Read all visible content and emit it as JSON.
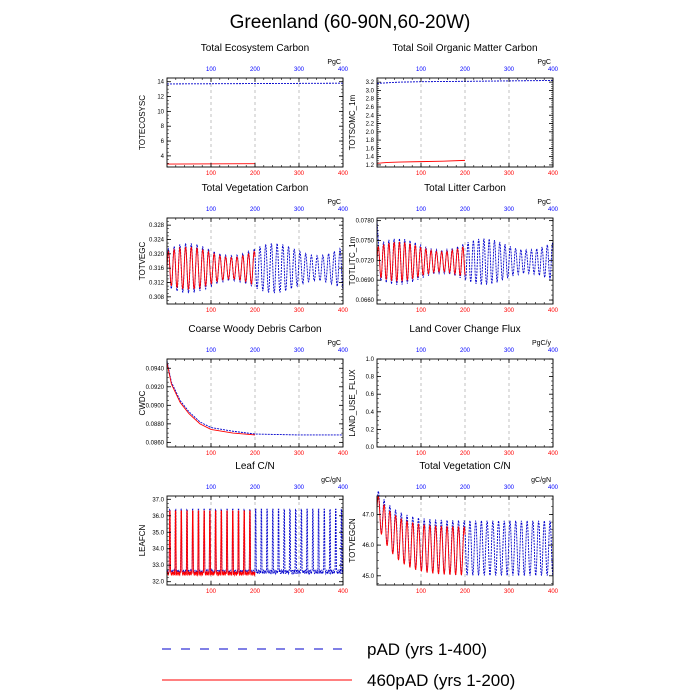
{
  "figure": {
    "title": "Greenland (60-90N,60-20W)",
    "top_axis_color": "#0000ff",
    "bottom_axis_color": "#ff0000"
  },
  "legend": [
    {
      "label": "pAD (yrs 1-400)",
      "color": "#0000cc",
      "style": "dashed"
    },
    {
      "label": "460pAD (yrs 1-200)",
      "color": "#ff0000",
      "style": "solid"
    }
  ],
  "chart_data": [
    {
      "type": "line",
      "title": "Total Ecosystem Carbon",
      "ylabel": "TOTECOSYSC",
      "units": "PgC",
      "xlim": [
        0,
        400
      ],
      "ylim": [
        2.5,
        14.5
      ],
      "yticks": [
        4,
        6,
        8,
        10,
        12,
        14
      ],
      "ytick_labels": [
        "4",
        "6",
        "8",
        "10",
        "12",
        "14"
      ],
      "xticks": [
        100,
        200,
        300,
        400
      ],
      "top_xticks": [
        100,
        200,
        300,
        400
      ],
      "grid": "vertical-dashed",
      "series": [
        {
          "name": "pAD (yrs 1-400)",
          "x": [
            0,
            400
          ],
          "y": [
            13.7,
            13.8
          ]
        },
        {
          "name": "460pAD (yrs 1-200)",
          "x": [
            0,
            200
          ],
          "y": [
            2.9,
            2.95
          ]
        }
      ]
    },
    {
      "type": "line",
      "title": "Total Soil Organic Matter Carbon",
      "ylabel": "TOTSOMC_1m",
      "units": "PgC",
      "xlim": [
        0,
        400
      ],
      "ylim": [
        1.15,
        3.3
      ],
      "yticks": [
        1.2,
        1.4,
        1.6,
        1.8,
        2.0,
        2.2,
        2.4,
        2.6,
        2.8,
        3.0,
        3.2
      ],
      "ytick_labels": [
        "1.2",
        "1.4",
        "1.6",
        "1.8",
        "2.0",
        "2.2",
        "2.4",
        "2.6",
        "2.8",
        "3.0",
        "3.2"
      ],
      "xticks": [
        100,
        200,
        300,
        400
      ],
      "top_xticks": [
        100,
        200,
        300,
        400
      ],
      "grid": "vertical-dashed",
      "series": [
        {
          "name": "pAD (yrs 1-400)",
          "x": [
            0,
            50,
            100,
            200,
            300,
            400
          ],
          "y": [
            3.17,
            3.2,
            3.21,
            3.22,
            3.23,
            3.24
          ]
        },
        {
          "name": "460pAD (yrs 1-200)",
          "x": [
            0,
            25,
            50,
            100,
            150,
            200
          ],
          "y": [
            1.24,
            1.26,
            1.27,
            1.28,
            1.29,
            1.31
          ]
        }
      ]
    },
    {
      "type": "line",
      "title": "Total Vegetation Carbon",
      "ylabel": "TOTVEGC",
      "units": "PgC",
      "xlim": [
        0,
        400
      ],
      "ylim": [
        0.306,
        0.33
      ],
      "yticks": [
        0.308,
        0.312,
        0.316,
        0.32,
        0.324,
        0.328
      ],
      "ytick_labels": [
        "0.308",
        "0.312",
        "0.316",
        "0.320",
        "0.324",
        "0.328"
      ],
      "xticks": [
        100,
        200,
        300,
        400
      ],
      "top_xticks": [
        100,
        200,
        300,
        400
      ],
      "grid": "vertical-dashed",
      "series": [
        {
          "name": "pAD (yrs 1-400)",
          "pattern": "oscillating",
          "center": 0.316,
          "amplitude": 0.007,
          "period": 13,
          "x_range": [
            0,
            400
          ]
        },
        {
          "name": "460pAD (yrs 1-200)",
          "pattern": "oscillating",
          "center": 0.316,
          "amplitude": 0.006,
          "period": 13,
          "x_range": [
            0,
            200
          ]
        }
      ]
    },
    {
      "type": "line",
      "title": "Total Litter Carbon",
      "ylabel": "TOTLITC_1m",
      "units": "PgC",
      "xlim": [
        0,
        400
      ],
      "ylim": [
        0.0654,
        0.0784
      ],
      "yticks": [
        0.066,
        0.069,
        0.072,
        0.075,
        0.078
      ],
      "ytick_labels": [
        "0.0660",
        "0.0690",
        "0.0720",
        "0.0750",
        "0.0780"
      ],
      "xticks": [
        100,
        200,
        300,
        400
      ],
      "top_xticks": [
        100,
        200,
        300,
        400
      ],
      "grid": "vertical-dashed",
      "series": [
        {
          "name": "pAD (yrs 1-400)",
          "pattern": "oscillating",
          "center": 0.0718,
          "amplitude": 0.0035,
          "period": 12,
          "x_range": [
            0,
            400
          ],
          "start_peak": 0.078
        },
        {
          "name": "460pAD (yrs 1-200)",
          "pattern": "oscillating",
          "center": 0.0718,
          "amplitude": 0.003,
          "period": 12,
          "x_range": [
            0,
            200
          ]
        }
      ]
    },
    {
      "type": "line",
      "title": "Coarse Woody Debris Carbon",
      "ylabel": "CWDC",
      "units": "PgC",
      "xlim": [
        0,
        400
      ],
      "ylim": [
        0.0855,
        0.095
      ],
      "yticks": [
        0.086,
        0.088,
        0.09,
        0.092,
        0.094
      ],
      "ytick_labels": [
        "0.0860",
        "0.0880",
        "0.0900",
        "0.0920",
        "0.0940"
      ],
      "xticks": [
        100,
        200,
        300,
        400
      ],
      "top_xticks": [
        100,
        200,
        300,
        400
      ],
      "grid": "vertical-dashed",
      "series": [
        {
          "name": "pAD (yrs 1-400)",
          "x": [
            0,
            10,
            20,
            30,
            50,
            75,
            100,
            150,
            200,
            300,
            400
          ],
          "y": [
            0.0948,
            0.0925,
            0.0915,
            0.0905,
            0.0893,
            0.0882,
            0.0876,
            0.0872,
            0.0869,
            0.0868,
            0.0868
          ]
        },
        {
          "name": "460pAD (yrs 1-200)",
          "x": [
            0,
            10,
            20,
            30,
            50,
            75,
            100,
            150,
            200
          ],
          "y": [
            0.0946,
            0.0923,
            0.0913,
            0.0903,
            0.0891,
            0.088,
            0.0874,
            0.087,
            0.0868
          ]
        }
      ]
    },
    {
      "type": "line",
      "title": "Land Cover Change Flux",
      "ylabel": "LAND_USE_FLUX",
      "units": "PgC/y",
      "xlim": [
        0,
        400
      ],
      "ylim": [
        0,
        1
      ],
      "yticks": [
        0,
        0.2,
        0.4,
        0.6,
        0.8,
        1.0
      ],
      "ytick_labels": [
        "0.0",
        "0.2",
        "0.4",
        "0.6",
        "0.8",
        "1.0"
      ],
      "xticks": [
        100,
        200,
        300,
        400
      ],
      "top_xticks": [
        100,
        200,
        300,
        400
      ],
      "grid": "vertical-dashed",
      "series": []
    },
    {
      "type": "line",
      "title": "Leaf C/N",
      "ylabel": "LEAFCN",
      "units": "gC/gN",
      "xlim": [
        0,
        400
      ],
      "ylim": [
        31.8,
        37.2
      ],
      "yticks": [
        32,
        33,
        34,
        35,
        36,
        37
      ],
      "ytick_labels": [
        "32.0",
        "33.0",
        "34.0",
        "35.0",
        "36.0",
        "37.0"
      ],
      "xticks": [
        100,
        200,
        300,
        400
      ],
      "top_xticks": [
        100,
        200,
        300,
        400
      ],
      "grid": "vertical-dashed",
      "series": [
        {
          "name": "pAD (yrs 1-400)",
          "pattern": "spikes",
          "baseline": 32.6,
          "peak": 36.8,
          "period": 13,
          "x_range": [
            0,
            400
          ]
        },
        {
          "name": "460pAD (yrs 1-200)",
          "pattern": "spikes",
          "baseline": 32.5,
          "peak": 36.7,
          "period": 13,
          "x_range": [
            0,
            200
          ]
        }
      ]
    },
    {
      "type": "line",
      "title": "Total Vegetation C/N",
      "ylabel": "TOTVEGCN",
      "units": "gC/gN",
      "xlim": [
        0,
        400
      ],
      "ylim": [
        44.7,
        47.6
      ],
      "yticks": [
        45,
        46,
        47
      ],
      "ytick_labels": [
        "45.0",
        "46.0",
        "47.0"
      ],
      "xticks": [
        100,
        200,
        300,
        400
      ],
      "top_xticks": [
        100,
        200,
        300,
        400
      ],
      "grid": "vertical-dashed",
      "series": [
        {
          "name": "pAD (yrs 1-400)",
          "pattern": "oscillating_decay",
          "start": 47.3,
          "center": 45.9,
          "amplitude": 0.9,
          "period": 13,
          "x_range": [
            0,
            400
          ]
        },
        {
          "name": "460pAD (yrs 1-200)",
          "pattern": "oscillating_decay",
          "start": 47.2,
          "center": 45.8,
          "amplitude": 0.8,
          "period": 13,
          "x_range": [
            0,
            200
          ]
        }
      ]
    }
  ]
}
